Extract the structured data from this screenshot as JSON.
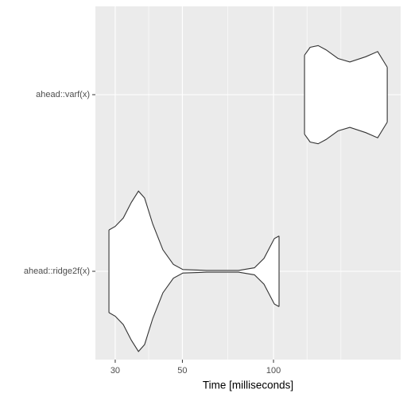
{
  "chart_data": {
    "type": "violin",
    "x_label": "Time [milliseconds]",
    "categories": [
      "ahead::ridge2f(x)",
      "ahead::varf(x)"
    ],
    "series": [
      {
        "name": "ahead::ridge2f(x)",
        "x": [
          28.6,
          30,
          31.9,
          33.9,
          35.8,
          37.5,
          39.9,
          43.1,
          46.7,
          50.2,
          60.1,
          76.6,
          86.5,
          93.0,
          100.6,
          104.3
        ],
        "half_width": [
          0.234,
          0.254,
          0.302,
          0.39,
          0.454,
          0.415,
          0.268,
          0.122,
          0.039,
          0.01,
          0.005,
          0.005,
          0.02,
          0.073,
          0.185,
          0.2
        ]
      },
      {
        "name": "ahead::varf(x)",
        "x": [
          126.6,
          132.1,
          140.4,
          149.1,
          163.3,
          178.7,
          201.7,
          220.9,
          237.5
        ],
        "half_width": [
          0.224,
          0.268,
          0.278,
          0.254,
          0.205,
          0.185,
          0.215,
          0.244,
          0.156
        ]
      }
    ],
    "color": "#ffffff",
    "xlim": [
      25.8,
      263
    ],
    "x_log": true,
    "xticks": [
      30,
      50,
      100
    ],
    "x_minor_grid": [
      38.7,
      70.7,
      129,
      167
    ],
    "grid": true
  }
}
